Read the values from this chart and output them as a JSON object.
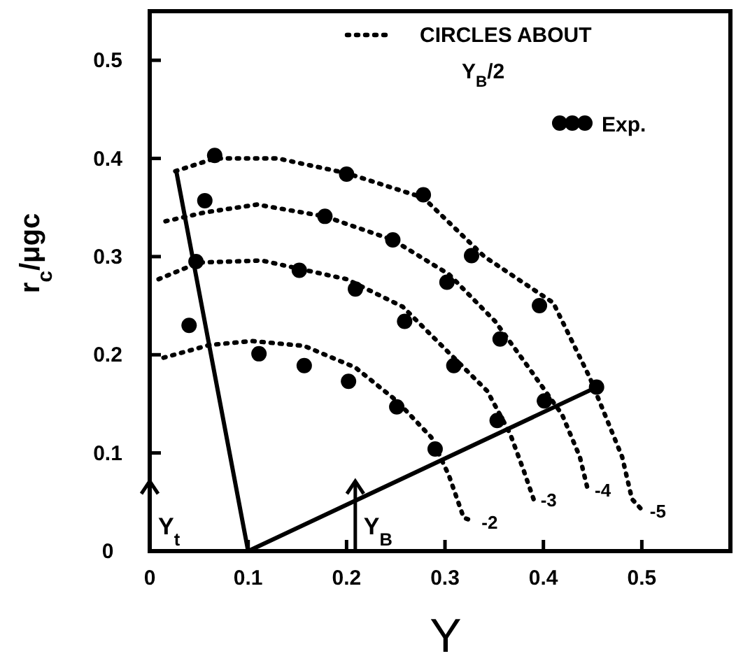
{
  "chart_data": {
    "type": "scatter",
    "xlabel": "Y",
    "ylabel": "r$_{c}$/μgc",
    "xlim": [
      0,
      0.59
    ],
    "ylim": [
      0,
      0.55
    ],
    "xticks": [
      0,
      0.1,
      0.2,
      0.3,
      0.4,
      0.5
    ],
    "yticks": [
      0,
      0.1,
      0.2,
      0.3,
      0.4,
      0.5
    ],
    "grid": false,
    "legend": "top right",
    "annotations": [
      "CIRCLES ABOUT Y$_{B}$/2",
      "Y$_{t}$",
      "Y$_{B}$"
    ],
    "series": [
      {
        "name": "Exp.",
        "marker": "circle",
        "color": "#000000",
        "x": [
          0.066,
          0.2,
          0.278,
          0.056,
          0.178,
          0.247,
          0.327,
          0.047,
          0.152,
          0.209,
          0.302,
          0.396,
          0.04,
          0.259,
          0.356,
          0.111,
          0.157,
          0.202,
          0.309,
          0.251,
          0.454,
          0.401,
          0.353,
          0.29
        ],
        "values": [
          0.403,
          0.384,
          0.363,
          0.357,
          0.341,
          0.317,
          0.301,
          0.295,
          0.286,
          0.267,
          0.274,
          0.25,
          0.23,
          0.234,
          0.216,
          0.201,
          0.189,
          0.173,
          0.189,
          0.147,
          0.167,
          0.153,
          0.133,
          0.104
        ]
      },
      {
        "name": "-2",
        "type": "line",
        "line_style": "dotted",
        "marker": "none",
        "color": "#000000",
        "x": [
          0.014,
          0.061,
          0.104,
          0.157,
          0.209,
          0.251,
          0.286,
          0.304,
          0.319,
          0.33
        ],
        "values": [
          0.197,
          0.21,
          0.214,
          0.209,
          0.187,
          0.153,
          0.116,
          0.077,
          0.034,
          0.03
        ]
      },
      {
        "name": "-3",
        "type": "line",
        "line_style": "dotted",
        "marker": "none",
        "color": "#000000",
        "x": [
          0.009,
          0.05,
          0.114,
          0.2,
          0.257,
          0.3,
          0.343,
          0.366,
          0.38,
          0.39
        ],
        "values": [
          0.277,
          0.294,
          0.296,
          0.277,
          0.249,
          0.206,
          0.163,
          0.12,
          0.082,
          0.053
        ]
      },
      {
        "name": "-4",
        "type": "line",
        "line_style": "dotted",
        "marker": "none",
        "color": "#000000",
        "x": [
          0.016,
          0.056,
          0.109,
          0.178,
          0.247,
          0.304,
          0.351,
          0.385,
          0.419,
          0.437,
          0.445
        ],
        "values": [
          0.336,
          0.345,
          0.353,
          0.341,
          0.317,
          0.282,
          0.234,
          0.187,
          0.139,
          0.096,
          0.063
        ]
      },
      {
        "name": "-5",
        "type": "line",
        "line_style": "dotted",
        "marker": "none",
        "color": "#000000",
        "x": [
          0.026,
          0.066,
          0.13,
          0.2,
          0.278,
          0.34,
          0.41,
          0.447,
          0.48,
          0.49,
          0.501
        ],
        "values": [
          0.387,
          0.4,
          0.4,
          0.385,
          0.36,
          0.3,
          0.253,
          0.177,
          0.096,
          0.053,
          0.041
        ]
      },
      {
        "type": "line",
        "line_style": "solid",
        "marker": "none",
        "color": "#000000",
        "x": [
          0.1,
          0.027
        ],
        "values": [
          0,
          0.387
        ]
      },
      {
        "type": "line",
        "line_style": "solid",
        "marker": "none",
        "color": "#000000",
        "x": [
          0.1,
          0.454
        ],
        "values": [
          0,
          0.167
        ]
      }
    ]
  }
}
